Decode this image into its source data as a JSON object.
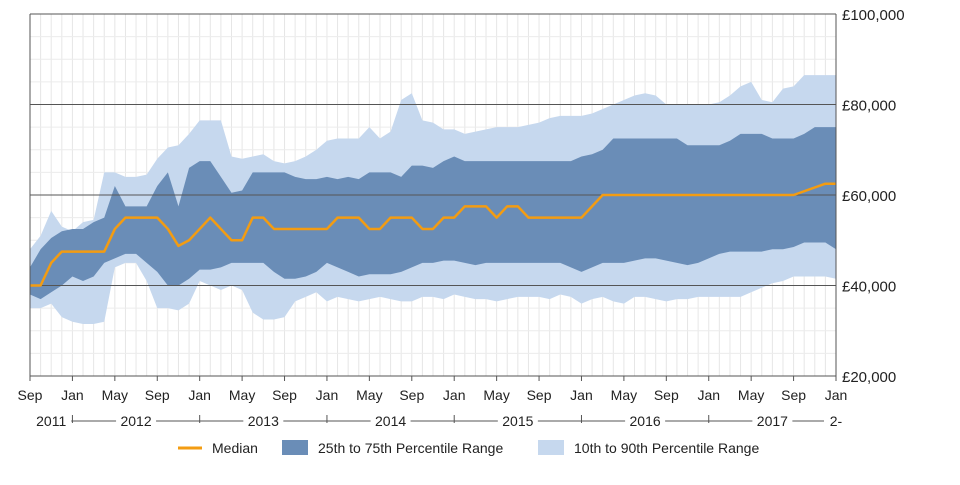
{
  "chart_data": {
    "type": "area",
    "title": "",
    "xlabel": "",
    "ylabel": "",
    "ylim": [
      20000,
      100000
    ],
    "y_ticks": [
      "£20,000",
      "£40,000",
      "£60,000",
      "£80,000",
      "£100,000"
    ],
    "y_tick_values": [
      20000,
      40000,
      60000,
      80000,
      100000
    ],
    "x_start": "2011-09",
    "x_end": "2018-01",
    "month_ticks": [
      "Sep",
      "Jan",
      "May",
      "Sep",
      "Jan",
      "May",
      "Sep",
      "Jan",
      "May",
      "Sep",
      "Jan",
      "May",
      "Sep",
      "Jan",
      "May",
      "Sep",
      "Jan",
      "May",
      "Sep",
      "Jan"
    ],
    "month_tick_dates": [
      "2011-09",
      "2012-01",
      "2012-05",
      "2012-09",
      "2013-01",
      "2013-05",
      "2013-09",
      "2014-01",
      "2014-05",
      "2014-09",
      "2015-01",
      "2015-05",
      "2015-09",
      "2016-01",
      "2016-05",
      "2016-09",
      "2017-01",
      "2017-05",
      "2017-09",
      "2018-01"
    ],
    "year_labels": [
      "2011",
      "2012",
      "2013",
      "2014",
      "2015",
      "2016",
      "2017",
      "2-"
    ],
    "year_label_dates": [
      "2011-11",
      "2012-07",
      "2013-07",
      "2014-07",
      "2015-07",
      "2016-07",
      "2017-07",
      "2018-01"
    ],
    "grid": true,
    "legend_position": "bottom",
    "colors": {
      "median": "#f39c12",
      "iqr": "#6a8db7",
      "p10_90": "#c6d8ee"
    },
    "series": [
      {
        "name": "Median",
        "x": [
          "2011-09",
          "2011-10",
          "2011-11",
          "2011-12",
          "2012-01",
          "2012-02",
          "2012-03",
          "2012-04",
          "2012-05",
          "2012-06",
          "2012-07",
          "2012-08",
          "2012-09",
          "2012-10",
          "2012-11",
          "2012-12",
          "2013-01",
          "2013-02",
          "2013-03",
          "2013-04",
          "2013-05",
          "2013-06",
          "2013-07",
          "2013-08",
          "2013-09",
          "2013-10",
          "2013-11",
          "2013-12",
          "2014-01",
          "2014-02",
          "2014-03",
          "2014-04",
          "2014-05",
          "2014-06",
          "2014-07",
          "2014-08",
          "2014-09",
          "2014-10",
          "2014-11",
          "2014-12",
          "2015-01",
          "2015-02",
          "2015-03",
          "2015-04",
          "2015-05",
          "2015-06",
          "2015-07",
          "2015-08",
          "2015-09",
          "2015-10",
          "2015-11",
          "2015-12",
          "2016-01",
          "2016-03",
          "2016-06",
          "2016-09",
          "2017-01",
          "2017-05",
          "2017-09",
          "2017-12",
          "2018-01"
        ],
        "values": [
          40000,
          40000,
          45000,
          47500,
          47500,
          47500,
          47500,
          47500,
          52500,
          55000,
          55000,
          55000,
          55000,
          52500,
          48750,
          50000,
          52500,
          55000,
          52500,
          50000,
          50000,
          55000,
          55000,
          52500,
          52500,
          52500,
          52500,
          52500,
          52500,
          55000,
          55000,
          55000,
          52500,
          52500,
          55000,
          55000,
          55000,
          52500,
          52500,
          55000,
          55000,
          57500,
          57500,
          57500,
          55000,
          57500,
          57500,
          55000,
          55000,
          55000,
          55000,
          55000,
          55000,
          60000,
          60000,
          60000,
          60000,
          60000,
          60000,
          62500,
          62500
        ]
      },
      {
        "name": "25th to 75th Percentile Range",
        "x": [
          "2011-09",
          "2011-10",
          "2011-11",
          "2011-12",
          "2012-01",
          "2012-02",
          "2012-03",
          "2012-04",
          "2012-05",
          "2012-06",
          "2012-07",
          "2012-08",
          "2012-09",
          "2012-10",
          "2012-11",
          "2012-12",
          "2013-01",
          "2013-02",
          "2013-03",
          "2013-04",
          "2013-05",
          "2013-06",
          "2013-07",
          "2013-08",
          "2013-09",
          "2013-10",
          "2013-11",
          "2013-12",
          "2014-01",
          "2014-02",
          "2014-03",
          "2014-04",
          "2014-05",
          "2014-06",
          "2014-07",
          "2014-08",
          "2014-09",
          "2014-10",
          "2014-11",
          "2014-12",
          "2015-01",
          "2015-02",
          "2015-03",
          "2015-04",
          "2015-05",
          "2015-06",
          "2015-07",
          "2015-08",
          "2015-09",
          "2015-10",
          "2015-11",
          "2015-12",
          "2016-01",
          "2016-02",
          "2016-03",
          "2016-04",
          "2016-05",
          "2016-06",
          "2016-07",
          "2016-08",
          "2016-09",
          "2016-10",
          "2016-11",
          "2016-12",
          "2017-01",
          "2017-02",
          "2017-03",
          "2017-04",
          "2017-05",
          "2017-06",
          "2017-07",
          "2017-08",
          "2017-09",
          "2017-10",
          "2017-11",
          "2017-12",
          "2018-01"
        ],
        "low": [
          38000,
          37000,
          38500,
          40000,
          42000,
          41000,
          42000,
          45000,
          46000,
          47000,
          47000,
          45000,
          43000,
          40000,
          40000,
          41500,
          43500,
          43500,
          44000,
          45000,
          45000,
          45000,
          45000,
          43000,
          41500,
          41500,
          42000,
          43000,
          45000,
          44000,
          43000,
          42000,
          42500,
          42500,
          42500,
          43000,
          44000,
          45000,
          45000,
          45500,
          45500,
          45000,
          44500,
          45000,
          45000,
          45000,
          45000,
          45000,
          45000,
          45000,
          45000,
          44000,
          43000,
          44000,
          45000,
          45000,
          45000,
          45500,
          46000,
          46000,
          45500,
          45000,
          44500,
          45000,
          46000,
          47000,
          47500,
          47500,
          47500,
          47500,
          48000,
          48000,
          48500,
          49500,
          49500,
          49500,
          48000
        ],
        "high": [
          44000,
          48000,
          50500,
          52000,
          52500,
          52500,
          54000,
          55000,
          62000,
          57500,
          57500,
          57500,
          62000,
          65000,
          57500,
          66000,
          67500,
          67500,
          64000,
          60500,
          61000,
          65000,
          65000,
          65000,
          65000,
          64000,
          63500,
          63500,
          64000,
          63500,
          64000,
          63500,
          65000,
          65000,
          65000,
          64000,
          66500,
          66500,
          66000,
          67500,
          68500,
          67500,
          67500,
          67500,
          67500,
          67500,
          67500,
          67500,
          67500,
          67500,
          67500,
          67500,
          68500,
          69000,
          70000,
          72500,
          72500,
          72500,
          72500,
          72500,
          72500,
          72500,
          71000,
          71000,
          71000,
          71000,
          72000,
          73500,
          73500,
          73500,
          72500,
          72500,
          72500,
          73500,
          75000,
          75000,
          75000
        ]
      },
      {
        "name": "10th to 90th Percentile Range",
        "x": [
          "2011-09",
          "2011-10",
          "2011-11",
          "2011-12",
          "2012-01",
          "2012-02",
          "2012-03",
          "2012-04",
          "2012-05",
          "2012-06",
          "2012-07",
          "2012-08",
          "2012-09",
          "2012-10",
          "2012-11",
          "2012-12",
          "2013-01",
          "2013-02",
          "2013-03",
          "2013-04",
          "2013-05",
          "2013-06",
          "2013-07",
          "2013-08",
          "2013-09",
          "2013-10",
          "2013-11",
          "2013-12",
          "2014-01",
          "2014-02",
          "2014-03",
          "2014-04",
          "2014-05",
          "2014-06",
          "2014-07",
          "2014-08",
          "2014-09",
          "2014-10",
          "2014-11",
          "2014-12",
          "2015-01",
          "2015-02",
          "2015-03",
          "2015-04",
          "2015-05",
          "2015-06",
          "2015-07",
          "2015-08",
          "2015-09",
          "2015-10",
          "2015-11",
          "2015-12",
          "2016-01",
          "2016-02",
          "2016-03",
          "2016-04",
          "2016-05",
          "2016-06",
          "2016-07",
          "2016-08",
          "2016-09",
          "2016-10",
          "2016-11",
          "2016-12",
          "2017-01",
          "2017-02",
          "2017-03",
          "2017-04",
          "2017-05",
          "2017-06",
          "2017-07",
          "2017-08",
          "2017-09",
          "2017-10",
          "2017-11",
          "2017-12",
          "2018-01"
        ],
        "low": [
          35000,
          35000,
          36000,
          33000,
          32000,
          31500,
          31500,
          32000,
          44000,
          45000,
          45000,
          41000,
          35000,
          35000,
          34500,
          36000,
          41000,
          40000,
          39000,
          40000,
          39000,
          34000,
          32500,
          32500,
          33000,
          36500,
          37500,
          38500,
          36500,
          37500,
          37000,
          36500,
          37000,
          37500,
          37000,
          36500,
          36500,
          37500,
          37500,
          37000,
          38000,
          37500,
          37000,
          37000,
          36500,
          37000,
          37500,
          37500,
          37500,
          37000,
          38000,
          37500,
          36000,
          37000,
          37500,
          36500,
          36000,
          37500,
          37500,
          37000,
          36500,
          37000,
          37000,
          37500,
          37500,
          37500,
          37500,
          37500,
          38500,
          39500,
          40500,
          41000,
          42000,
          42000,
          42000,
          42000,
          41500
        ],
        "high": [
          48000,
          51000,
          56500,
          53000,
          52000,
          54000,
          54500,
          65000,
          65000,
          64000,
          64000,
          64500,
          68000,
          70500,
          71000,
          73500,
          76500,
          76500,
          76500,
          68500,
          68000,
          68500,
          69000,
          67500,
          67000,
          67500,
          68500,
          70000,
          72000,
          72500,
          72500,
          72500,
          75000,
          72500,
          74000,
          81000,
          82500,
          76500,
          76000,
          74500,
          74500,
          73500,
          74000,
          74500,
          75000,
          75000,
          75000,
          75500,
          76000,
          77000,
          77500,
          77500,
          77500,
          78000,
          79000,
          80000,
          81000,
          82000,
          82500,
          82000,
          80000,
          80000,
          80000,
          80000,
          80000,
          80500,
          82000,
          84000,
          85000,
          81000,
          80500,
          83500,
          84000,
          86500,
          86500,
          86500,
          86500
        ]
      }
    ]
  },
  "legend": {
    "median_label": "Median",
    "iqr_label": "25th to 75th Percentile Range",
    "p10_90_label": "10th to 90th Percentile Range"
  }
}
